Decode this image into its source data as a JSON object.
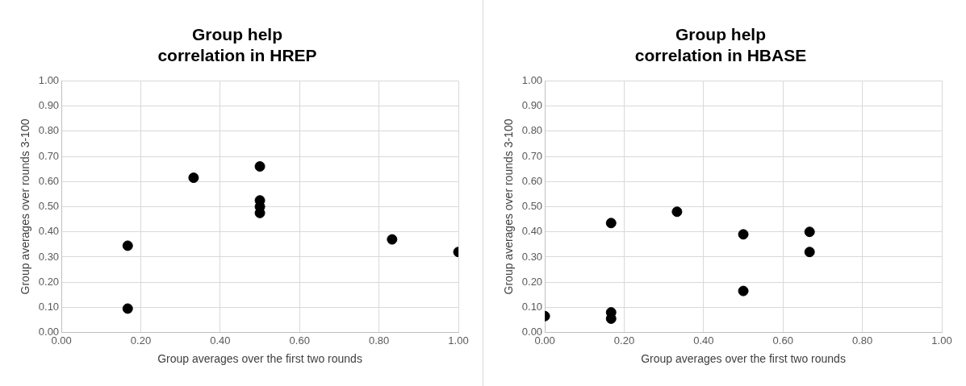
{
  "chart_data": [
    {
      "type": "scatter",
      "title": "Group help\ncorrelation in HREP",
      "xlabel": "Group averages over the first two rounds",
      "ylabel": "Group averages over rounds 3-100",
      "x": [
        0.167,
        0.167,
        0.333,
        0.5,
        0.5,
        0.5,
        0.5,
        0.833,
        1.0
      ],
      "values": [
        0.345,
        0.095,
        0.615,
        0.66,
        0.525,
        0.5,
        0.475,
        0.37,
        0.32
      ],
      "color": "#000000",
      "marker": "circle",
      "grid": true,
      "legend": false,
      "xlim": [
        0,
        1
      ],
      "xticks": [
        {
          "value": 0,
          "label": "0.00"
        },
        {
          "value": 0.2,
          "label": "0.20"
        },
        {
          "value": 0.4,
          "label": "0.40"
        },
        {
          "value": 0.6,
          "label": "0.60"
        },
        {
          "value": 0.8,
          "label": "0.80"
        },
        {
          "value": 1,
          "label": "1.00"
        }
      ],
      "ylim": [
        0,
        1
      ],
      "yticks": [
        {
          "value": 0,
          "label": "0.00"
        },
        {
          "value": 0.1,
          "label": "0.10"
        },
        {
          "value": 0.2,
          "label": "0.20"
        },
        {
          "value": 0.3,
          "label": "0.30"
        },
        {
          "value": 0.4,
          "label": "0.40"
        },
        {
          "value": 0.5,
          "label": "0.50"
        },
        {
          "value": 0.6,
          "label": "0.60"
        },
        {
          "value": 0.7,
          "label": "0.70"
        },
        {
          "value": 0.8,
          "label": "0.80"
        },
        {
          "value": 0.9,
          "label": "0.90"
        },
        {
          "value": 1,
          "label": "1.00"
        }
      ]
    },
    {
      "type": "scatter",
      "title": "Group help\ncorrelation in HBASE",
      "xlabel": "Group averages over the first two rounds",
      "ylabel": "Group averages over rounds 3-100",
      "x": [
        0,
        0.167,
        0.167,
        0.167,
        0.333,
        0.5,
        0.5,
        0.667,
        0.667
      ],
      "values": [
        0.065,
        0.435,
        0.08,
        0.055,
        0.48,
        0.39,
        0.165,
        0.4,
        0.32
      ],
      "color": "#000000",
      "marker": "circle",
      "grid": true,
      "legend": false,
      "xlim": [
        0,
        1
      ],
      "xticks": [
        {
          "value": 0,
          "label": "0.00"
        },
        {
          "value": 0.2,
          "label": "0.20"
        },
        {
          "value": 0.4,
          "label": "0.40"
        },
        {
          "value": 0.6,
          "label": "0.60"
        },
        {
          "value": 0.8,
          "label": "0.80"
        },
        {
          "value": 1,
          "label": "1.00"
        }
      ],
      "ylim": [
        0,
        1
      ],
      "yticks": [
        {
          "value": 0,
          "label": "0.00"
        },
        {
          "value": 0.1,
          "label": "0.10"
        },
        {
          "value": 0.2,
          "label": "0.20"
        },
        {
          "value": 0.3,
          "label": "0.30"
        },
        {
          "value": 0.4,
          "label": "0.40"
        },
        {
          "value": 0.5,
          "label": "0.50"
        },
        {
          "value": 0.6,
          "label": "0.60"
        },
        {
          "value": 0.7,
          "label": "0.70"
        },
        {
          "value": 0.8,
          "label": "0.80"
        },
        {
          "value": 0.9,
          "label": "0.90"
        },
        {
          "value": 1,
          "label": "1.00"
        }
      ]
    }
  ]
}
